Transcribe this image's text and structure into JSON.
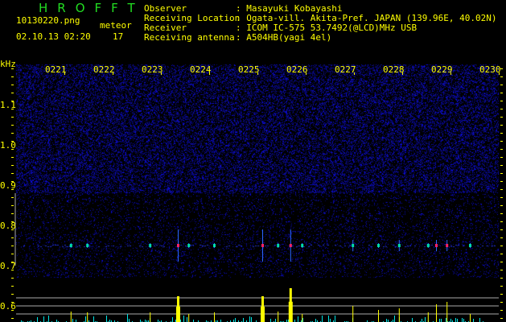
{
  "header": {
    "app_title": "HROFFT",
    "filename": "10130220.png",
    "datetime": "02.10.13 02:20",
    "meteor_label": "meteor",
    "meteor_count": "17",
    "info": [
      {
        "label": "Observer",
        "value": ": Masayuki Kobayashi"
      },
      {
        "label": "Receiving Location",
        "value": ": Ogata-vill. Akita-Pref. JAPAN (139.96E, 40.02N)"
      },
      {
        "label": "Receiver",
        "value": ": ICOM IC-575 53.7492(@LCD)MHz USB"
      },
      {
        "label": "Receiving antenna",
        "value": ": A504HB(yagi 4el)"
      }
    ]
  },
  "colors": {
    "text": "#ffff00",
    "title": "#22dd22",
    "noise": "#1a1aff",
    "echo_bar": "#ffff00",
    "baseline_bar": "#00e5e5",
    "threshold": "#aaaaaa"
  },
  "chart_data": {
    "type": "heatmap",
    "ylabel": "kHz",
    "y_ticks": [
      "1.1",
      "1.0",
      "0.9",
      "0.8",
      "0.7",
      "0.6"
    ],
    "x_ticks": [
      "0221",
      "0222",
      "0223",
      "0224",
      "0225",
      "0226",
      "0227",
      "0228",
      "0229",
      "0230"
    ],
    "x_range_minutes": [
      20,
      30
    ],
    "y_range_khz": [
      0.56,
      1.2
    ],
    "echo_frequency_khz": 0.75,
    "echoes": [
      {
        "minute": 21.13,
        "level": 13
      },
      {
        "minute": 21.47,
        "level": 12
      },
      {
        "minute": 22.77,
        "level": 12
      },
      {
        "minute": 23.35,
        "level": 32
      },
      {
        "minute": 23.57,
        "level": 10
      },
      {
        "minute": 24.1,
        "level": 12
      },
      {
        "minute": 25.1,
        "level": 32
      },
      {
        "minute": 25.42,
        "level": 13
      },
      {
        "minute": 25.68,
        "level": 42
      },
      {
        "minute": 25.92,
        "level": 10
      },
      {
        "minute": 26.97,
        "level": 20
      },
      {
        "minute": 27.5,
        "level": 15
      },
      {
        "minute": 27.93,
        "level": 17
      },
      {
        "minute": 28.53,
        "level": 12
      },
      {
        "minute": 28.7,
        "level": 22
      },
      {
        "minute": 28.92,
        "level": 25
      },
      {
        "minute": 29.4,
        "level": 10
      }
    ],
    "thresholds": [
      10,
      20,
      30
    ]
  }
}
